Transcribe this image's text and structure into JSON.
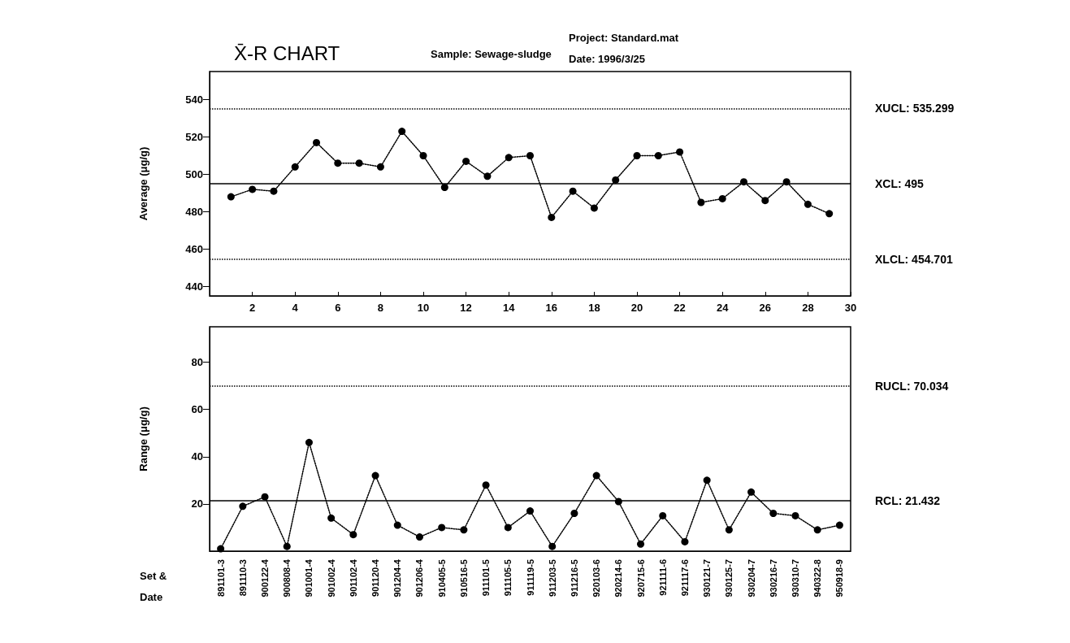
{
  "chart_data": [
    {
      "type": "line",
      "title": "X̄-R CHART",
      "ylabel": "Average (μg/g)",
      "annotations": [
        "Sample: Sewage-sludge",
        "Project: Standard.mat",
        "Date: 1996/3/25"
      ],
      "x": [
        1,
        2,
        3,
        4,
        5,
        6,
        7,
        8,
        9,
        10,
        11,
        12,
        13,
        14,
        15,
        16,
        17,
        18,
        19,
        20,
        21,
        22,
        23,
        24,
        25,
        26,
        27,
        28,
        29
      ],
      "values": [
        488,
        492,
        491,
        504,
        517,
        506,
        506,
        504,
        523,
        510,
        493,
        507,
        499,
        509,
        510,
        477,
        491,
        482,
        497,
        510,
        510,
        512,
        485,
        487,
        496,
        486,
        496,
        484,
        479
      ],
      "color": "#000000",
      "marker": "circle",
      "line_style": "dotted",
      "xlim": [
        0,
        30
      ],
      "xticks": [
        2,
        4,
        6,
        8,
        10,
        12,
        14,
        16,
        18,
        20,
        22,
        24,
        26,
        28,
        30
      ],
      "ylim": [
        435,
        555
      ],
      "yticks": [
        440,
        460,
        480,
        500,
        520,
        540
      ],
      "ref_lines": [
        {
          "axis": "y",
          "value": 535.299,
          "label": "XUCL: 535.299",
          "line_style": "dotted",
          "color": "#000000"
        },
        {
          "axis": "y",
          "value": 495,
          "label": "XCL: 495",
          "line_style": "solid",
          "color": "#000000"
        },
        {
          "axis": "y",
          "value": 454.701,
          "label": "XLCL: 454.701",
          "line_style": "dotted",
          "color": "#000000"
        }
      ]
    },
    {
      "type": "line",
      "ylabel": "Range (μg/g)",
      "xlabel": "Set & Date",
      "categories": [
        "891101-3",
        "891110-3",
        "900122-4",
        "900808-4",
        "901001-4",
        "901002-4",
        "901102-4",
        "901120-4",
        "901204-4",
        "901206-4",
        "910405-5",
        "910516-5",
        "911101-5",
        "911105-5",
        "911119-5",
        "911203-5",
        "911216-5",
        "920103-6",
        "920214-6",
        "920715-6",
        "921111-6",
        "921117-6",
        "930121-7",
        "930125-7",
        "930204-7",
        "930216-7",
        "930310-7",
        "940322-8",
        "950918-9"
      ],
      "values": [
        1,
        19,
        23,
        2,
        46,
        14,
        7,
        32,
        11,
        6,
        10,
        9,
        28,
        10,
        17,
        2,
        16,
        32,
        21,
        3,
        15,
        4,
        30,
        9,
        25,
        16,
        15,
        9,
        11
      ],
      "color": "#000000",
      "marker": "circle",
      "line_style": "dotted",
      "ylim": [
        0,
        95
      ],
      "yticks": [
        20,
        40,
        60,
        80
      ],
      "ref_lines": [
        {
          "axis": "y",
          "value": 70.034,
          "label": "RUCL: 70.034",
          "line_style": "dotted",
          "color": "#000000"
        },
        {
          "axis": "y",
          "value": 21.432,
          "label": "RCL: 21.432",
          "line_style": "solid",
          "color": "#000000"
        }
      ]
    }
  ]
}
